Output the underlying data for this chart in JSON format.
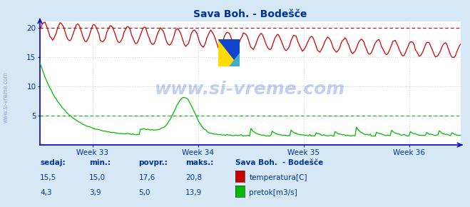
{
  "title": "Sava Boh. - Bodešče",
  "bg_color": "#d6e8f5",
  "plot_bg_color": "#ffffff",
  "grid_color": "#c8d8e8",
  "text_color": "#003399",
  "temp_color": "#cc0000",
  "flow_color": "#00bb00",
  "axis_color": "#0000cc",
  "temp_hline": 20.0,
  "flow_hline": 5.0,
  "ylim_min": 0,
  "ylim_max": 21,
  "yticks": [
    5,
    10,
    15,
    20
  ],
  "week_labels": [
    "Week 33",
    "Week 34",
    "Week 35",
    "Week 36"
  ],
  "n_points": 336,
  "watermark": "www.si-vreme.com",
  "legend_title": "Sava Boh.  - Bodešče",
  "temp_label": "temperatura[C]",
  "flow_label": "pretok[m3/s]",
  "headers": [
    "sedaj:",
    "min.:",
    "povpr.:",
    "maks.:"
  ],
  "temp_vals": [
    "15,5",
    "15,0",
    "17,6",
    "20,8"
  ],
  "flow_vals": [
    "4,3",
    "3,9",
    "5,0",
    "13,9"
  ]
}
